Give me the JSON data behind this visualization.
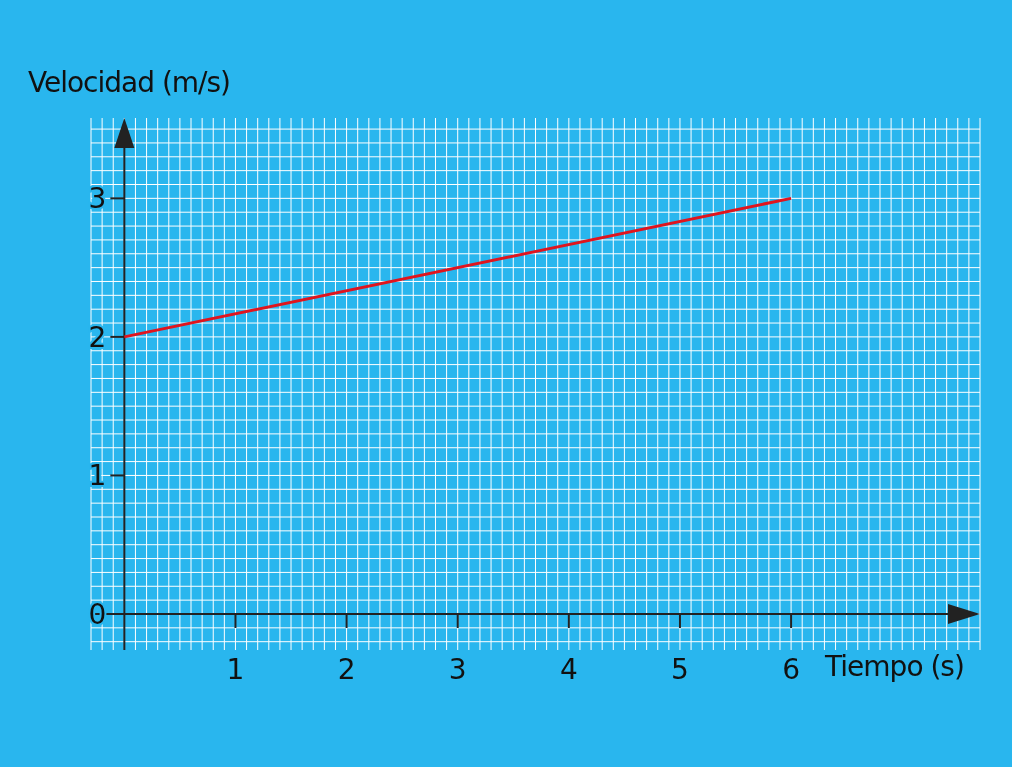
{
  "chart_data": {
    "type": "line",
    "xlabel": "Tiempo (s)",
    "ylabel": "Velocidad (m/s)",
    "x": [
      0,
      6
    ],
    "series": [
      {
        "color": "#e0141e",
        "values": [
          2,
          3
        ]
      }
    ],
    "xlim": [
      -0.3,
      7.7
    ],
    "ylim": [
      -0.26,
      3.58
    ],
    "xticks": [
      {
        "value": 0,
        "label": null
      },
      1,
      2,
      3,
      4,
      5,
      6
    ],
    "yticks": [
      0,
      1,
      2,
      3
    ],
    "grid": true,
    "marker": "none",
    "line_style": "solid"
  }
}
